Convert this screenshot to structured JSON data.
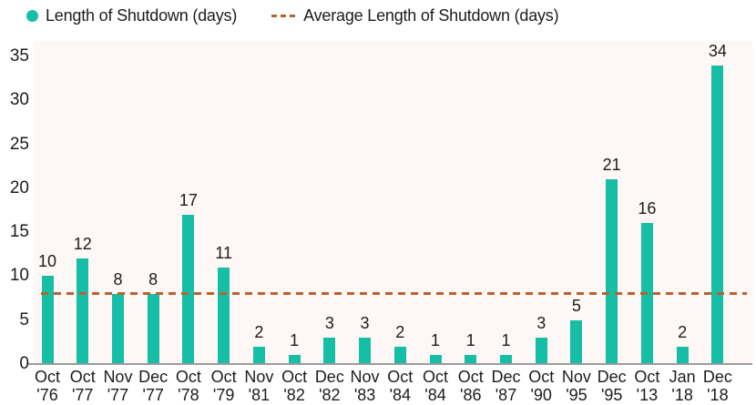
{
  "legend": {
    "items": [
      {
        "label": "Length of Shutdown (days)",
        "marker": "dot"
      },
      {
        "label": "Average Length of Shutdown (days)",
        "marker": "dash"
      }
    ]
  },
  "colors": {
    "bar": "#15BEA4",
    "avg_line": "#B9622F",
    "plot_bg": "#FDF7F5",
    "text": "#1C1C1C",
    "axis_line": "#9B9B9B"
  },
  "chart_data": {
    "type": "bar",
    "title": "",
    "xlabel": "",
    "ylabel": "",
    "categories": [
      "Oct '76",
      "Oct '77",
      "Nov '77",
      "Dec '77",
      "Oct '78",
      "Oct '79",
      "Nov '81",
      "Oct '82",
      "Dec '82",
      "Nov '83",
      "Oct '84",
      "Oct '84",
      "Oct '86",
      "Dec '87",
      "Oct '90",
      "Nov '95",
      "Dec '95",
      "Oct '13",
      "Jan '18",
      "Dec '18"
    ],
    "values": [
      10,
      12,
      8,
      8,
      17,
      11,
      2,
      1,
      3,
      3,
      2,
      1,
      1,
      1,
      3,
      5,
      21,
      16,
      2,
      34
    ],
    "average_value": 8.05,
    "yticks": [
      0,
      5,
      10,
      15,
      20,
      25,
      30,
      35
    ],
    "ylim": [
      0,
      36.75
    ],
    "grid": false,
    "legend_position": "top-left"
  }
}
